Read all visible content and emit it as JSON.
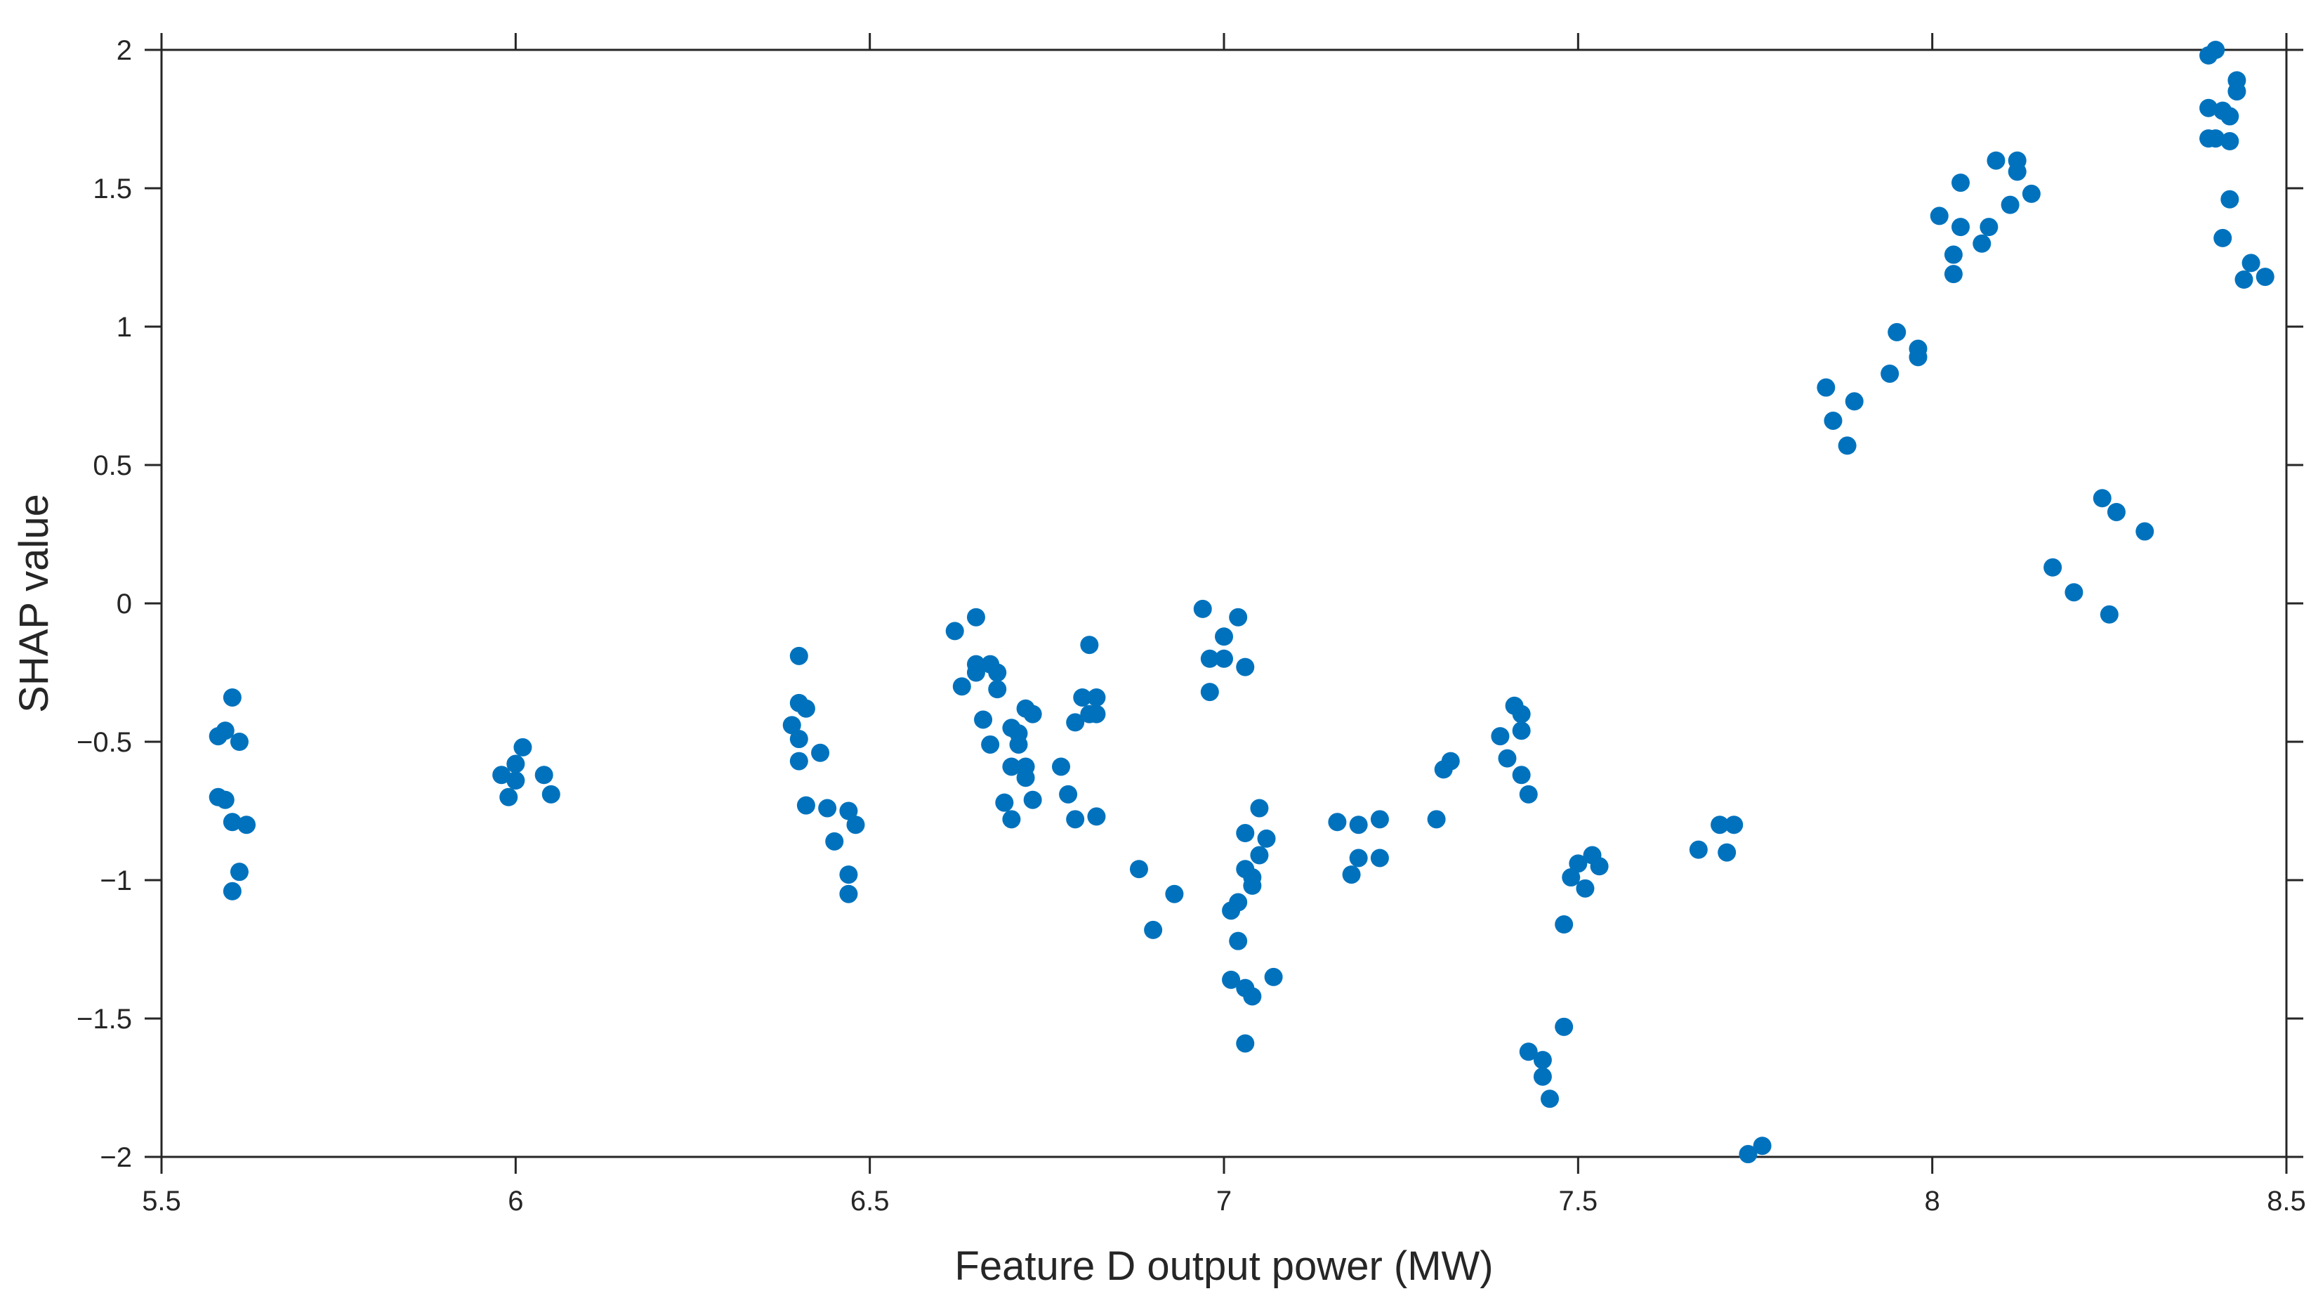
{
  "chart_data": {
    "type": "scatter",
    "title": "",
    "xlabel": "Feature D output power (MW)",
    "ylabel": "SHAP value",
    "xlim": [
      5.5,
      8.5
    ],
    "ylim": [
      -2,
      2
    ],
    "xticks": [
      "5.5",
      "6",
      "6.5",
      "7",
      "7.5",
      "8",
      "8.5"
    ],
    "xtick_values": [
      5.5,
      6,
      6.5,
      7,
      7.5,
      8,
      8.5
    ],
    "yticks": [
      "2",
      "1.5",
      "1",
      "0.5",
      "0",
      "−0.5",
      "−1",
      "−1.5",
      "−2"
    ],
    "ytick_values": [
      2,
      1.5,
      1,
      0.5,
      0,
      -0.5,
      -1,
      -1.5,
      -2
    ],
    "grid": false,
    "marker_color": "#0072BD",
    "series": [
      {
        "points": [
          [
            5.58,
            -0.7
          ],
          [
            5.59,
            -0.71
          ],
          [
            5.58,
            -0.48
          ],
          [
            5.59,
            -0.46
          ],
          [
            5.6,
            -0.34
          ],
          [
            5.61,
            -0.5
          ],
          [
            5.6,
            -0.79
          ],
          [
            5.62,
            -0.8
          ],
          [
            5.61,
            -0.97
          ],
          [
            5.6,
            -1.04
          ],
          [
            5.98,
            -0.62
          ],
          [
            5.99,
            -0.7
          ],
          [
            6.0,
            -0.64
          ],
          [
            6.0,
            -0.58
          ],
          [
            6.01,
            -0.52
          ],
          [
            6.04,
            -0.62
          ],
          [
            6.05,
            -0.69
          ],
          [
            6.39,
            -0.44
          ],
          [
            6.4,
            -0.19
          ],
          [
            6.4,
            -0.36
          ],
          [
            6.41,
            -0.38
          ],
          [
            6.4,
            -0.49
          ],
          [
            6.4,
            -0.57
          ],
          [
            6.41,
            -0.73
          ],
          [
            6.43,
            -0.54
          ],
          [
            6.44,
            -0.74
          ],
          [
            6.45,
            -0.86
          ],
          [
            6.47,
            -0.75
          ],
          [
            6.48,
            -0.8
          ],
          [
            6.47,
            -0.98
          ],
          [
            6.47,
            -1.05
          ],
          [
            6.62,
            -0.1
          ],
          [
            6.63,
            -0.3
          ],
          [
            6.65,
            -0.05
          ],
          [
            6.65,
            -0.22
          ],
          [
            6.65,
            -0.25
          ],
          [
            6.66,
            -0.42
          ],
          [
            6.67,
            -0.22
          ],
          [
            6.68,
            -0.25
          ],
          [
            6.68,
            -0.31
          ],
          [
            6.67,
            -0.51
          ],
          [
            6.7,
            -0.45
          ],
          [
            6.71,
            -0.47
          ],
          [
            6.71,
            -0.51
          ],
          [
            6.72,
            -0.38
          ],
          [
            6.73,
            -0.4
          ],
          [
            6.69,
            -0.72
          ],
          [
            6.7,
            -0.78
          ],
          [
            6.7,
            -0.59
          ],
          [
            6.72,
            -0.59
          ],
          [
            6.72,
            -0.63
          ],
          [
            6.73,
            -0.71
          ],
          [
            6.77,
            -0.59
          ],
          [
            6.78,
            -0.69
          ],
          [
            6.79,
            -0.43
          ],
          [
            6.79,
            -0.78
          ],
          [
            6.8,
            -0.34
          ],
          [
            6.81,
            -0.15
          ],
          [
            6.82,
            -0.34
          ],
          [
            6.81,
            -0.4
          ],
          [
            6.82,
            -0.4
          ],
          [
            6.82,
            -0.77
          ],
          [
            6.88,
            -0.96
          ],
          [
            6.9,
            -1.18
          ],
          [
            6.93,
            -1.05
          ],
          [
            6.97,
            -0.02
          ],
          [
            6.98,
            -0.32
          ],
          [
            6.98,
            -0.2
          ],
          [
            7.0,
            -0.2
          ],
          [
            7.0,
            -0.12
          ],
          [
            7.02,
            -0.05
          ],
          [
            7.03,
            -0.23
          ],
          [
            7.01,
            -1.11
          ],
          [
            7.02,
            -1.08
          ],
          [
            7.01,
            -1.36
          ],
          [
            7.02,
            -1.22
          ],
          [
            7.03,
            -0.96
          ],
          [
            7.03,
            -0.83
          ],
          [
            7.03,
            -1.39
          ],
          [
            7.04,
            -0.99
          ],
          [
            7.04,
            -1.02
          ],
          [
            7.05,
            -0.91
          ],
          [
            7.05,
            -0.74
          ],
          [
            7.06,
            -0.85
          ],
          [
            7.03,
            -1.59
          ],
          [
            7.04,
            -1.42
          ],
          [
            7.07,
            -1.35
          ],
          [
            7.16,
            -0.79
          ],
          [
            7.18,
            -0.98
          ],
          [
            7.19,
            -0.92
          ],
          [
            7.19,
            -0.8
          ],
          [
            7.22,
            -0.92
          ],
          [
            7.22,
            -0.78
          ],
          [
            7.3,
            -0.78
          ],
          [
            7.31,
            -0.6
          ],
          [
            7.32,
            -0.57
          ],
          [
            7.39,
            -0.48
          ],
          [
            7.4,
            -0.56
          ],
          [
            7.41,
            -0.37
          ],
          [
            7.42,
            -0.4
          ],
          [
            7.42,
            -0.46
          ],
          [
            7.42,
            -0.62
          ],
          [
            7.43,
            -0.69
          ],
          [
            7.43,
            -1.62
          ],
          [
            7.45,
            -1.65
          ],
          [
            7.45,
            -1.71
          ],
          [
            7.46,
            -1.79
          ],
          [
            7.48,
            -1.53
          ],
          [
            7.48,
            -1.16
          ],
          [
            7.49,
            -0.99
          ],
          [
            7.5,
            -0.94
          ],
          [
            7.51,
            -1.03
          ],
          [
            7.52,
            -0.91
          ],
          [
            7.53,
            -0.95
          ],
          [
            7.67,
            -0.89
          ],
          [
            7.7,
            -0.8
          ],
          [
            7.71,
            -0.9
          ],
          [
            7.72,
            -0.8
          ],
          [
            7.74,
            -1.99
          ],
          [
            7.76,
            -1.96
          ],
          [
            7.85,
            0.78
          ],
          [
            7.86,
            0.66
          ],
          [
            7.88,
            0.57
          ],
          [
            7.89,
            0.73
          ],
          [
            7.94,
            0.83
          ],
          [
            7.95,
            0.98
          ],
          [
            7.98,
            0.92
          ],
          [
            7.98,
            0.89
          ],
          [
            8.01,
            1.4
          ],
          [
            8.03,
            1.19
          ],
          [
            8.03,
            1.26
          ],
          [
            8.04,
            1.36
          ],
          [
            8.04,
            1.52
          ],
          [
            8.07,
            1.3
          ],
          [
            8.08,
            1.36
          ],
          [
            8.09,
            1.6
          ],
          [
            8.11,
            1.44
          ],
          [
            8.12,
            1.56
          ],
          [
            8.12,
            1.6
          ],
          [
            8.14,
            1.48
          ],
          [
            8.17,
            0.13
          ],
          [
            8.2,
            0.04
          ],
          [
            8.24,
            0.38
          ],
          [
            8.25,
            -0.04
          ],
          [
            8.26,
            0.33
          ],
          [
            8.3,
            0.26
          ],
          [
            8.39,
            1.98
          ],
          [
            8.4,
            2.0
          ],
          [
            8.39,
            1.79
          ],
          [
            8.39,
            1.68
          ],
          [
            8.4,
            1.68
          ],
          [
            8.41,
            1.78
          ],
          [
            8.41,
            1.32
          ],
          [
            8.42,
            1.46
          ],
          [
            8.42,
            1.76
          ],
          [
            8.42,
            1.67
          ],
          [
            8.43,
            1.85
          ],
          [
            8.43,
            1.89
          ],
          [
            8.44,
            1.17
          ],
          [
            8.45,
            1.23
          ],
          [
            8.47,
            1.18
          ]
        ]
      }
    ]
  }
}
